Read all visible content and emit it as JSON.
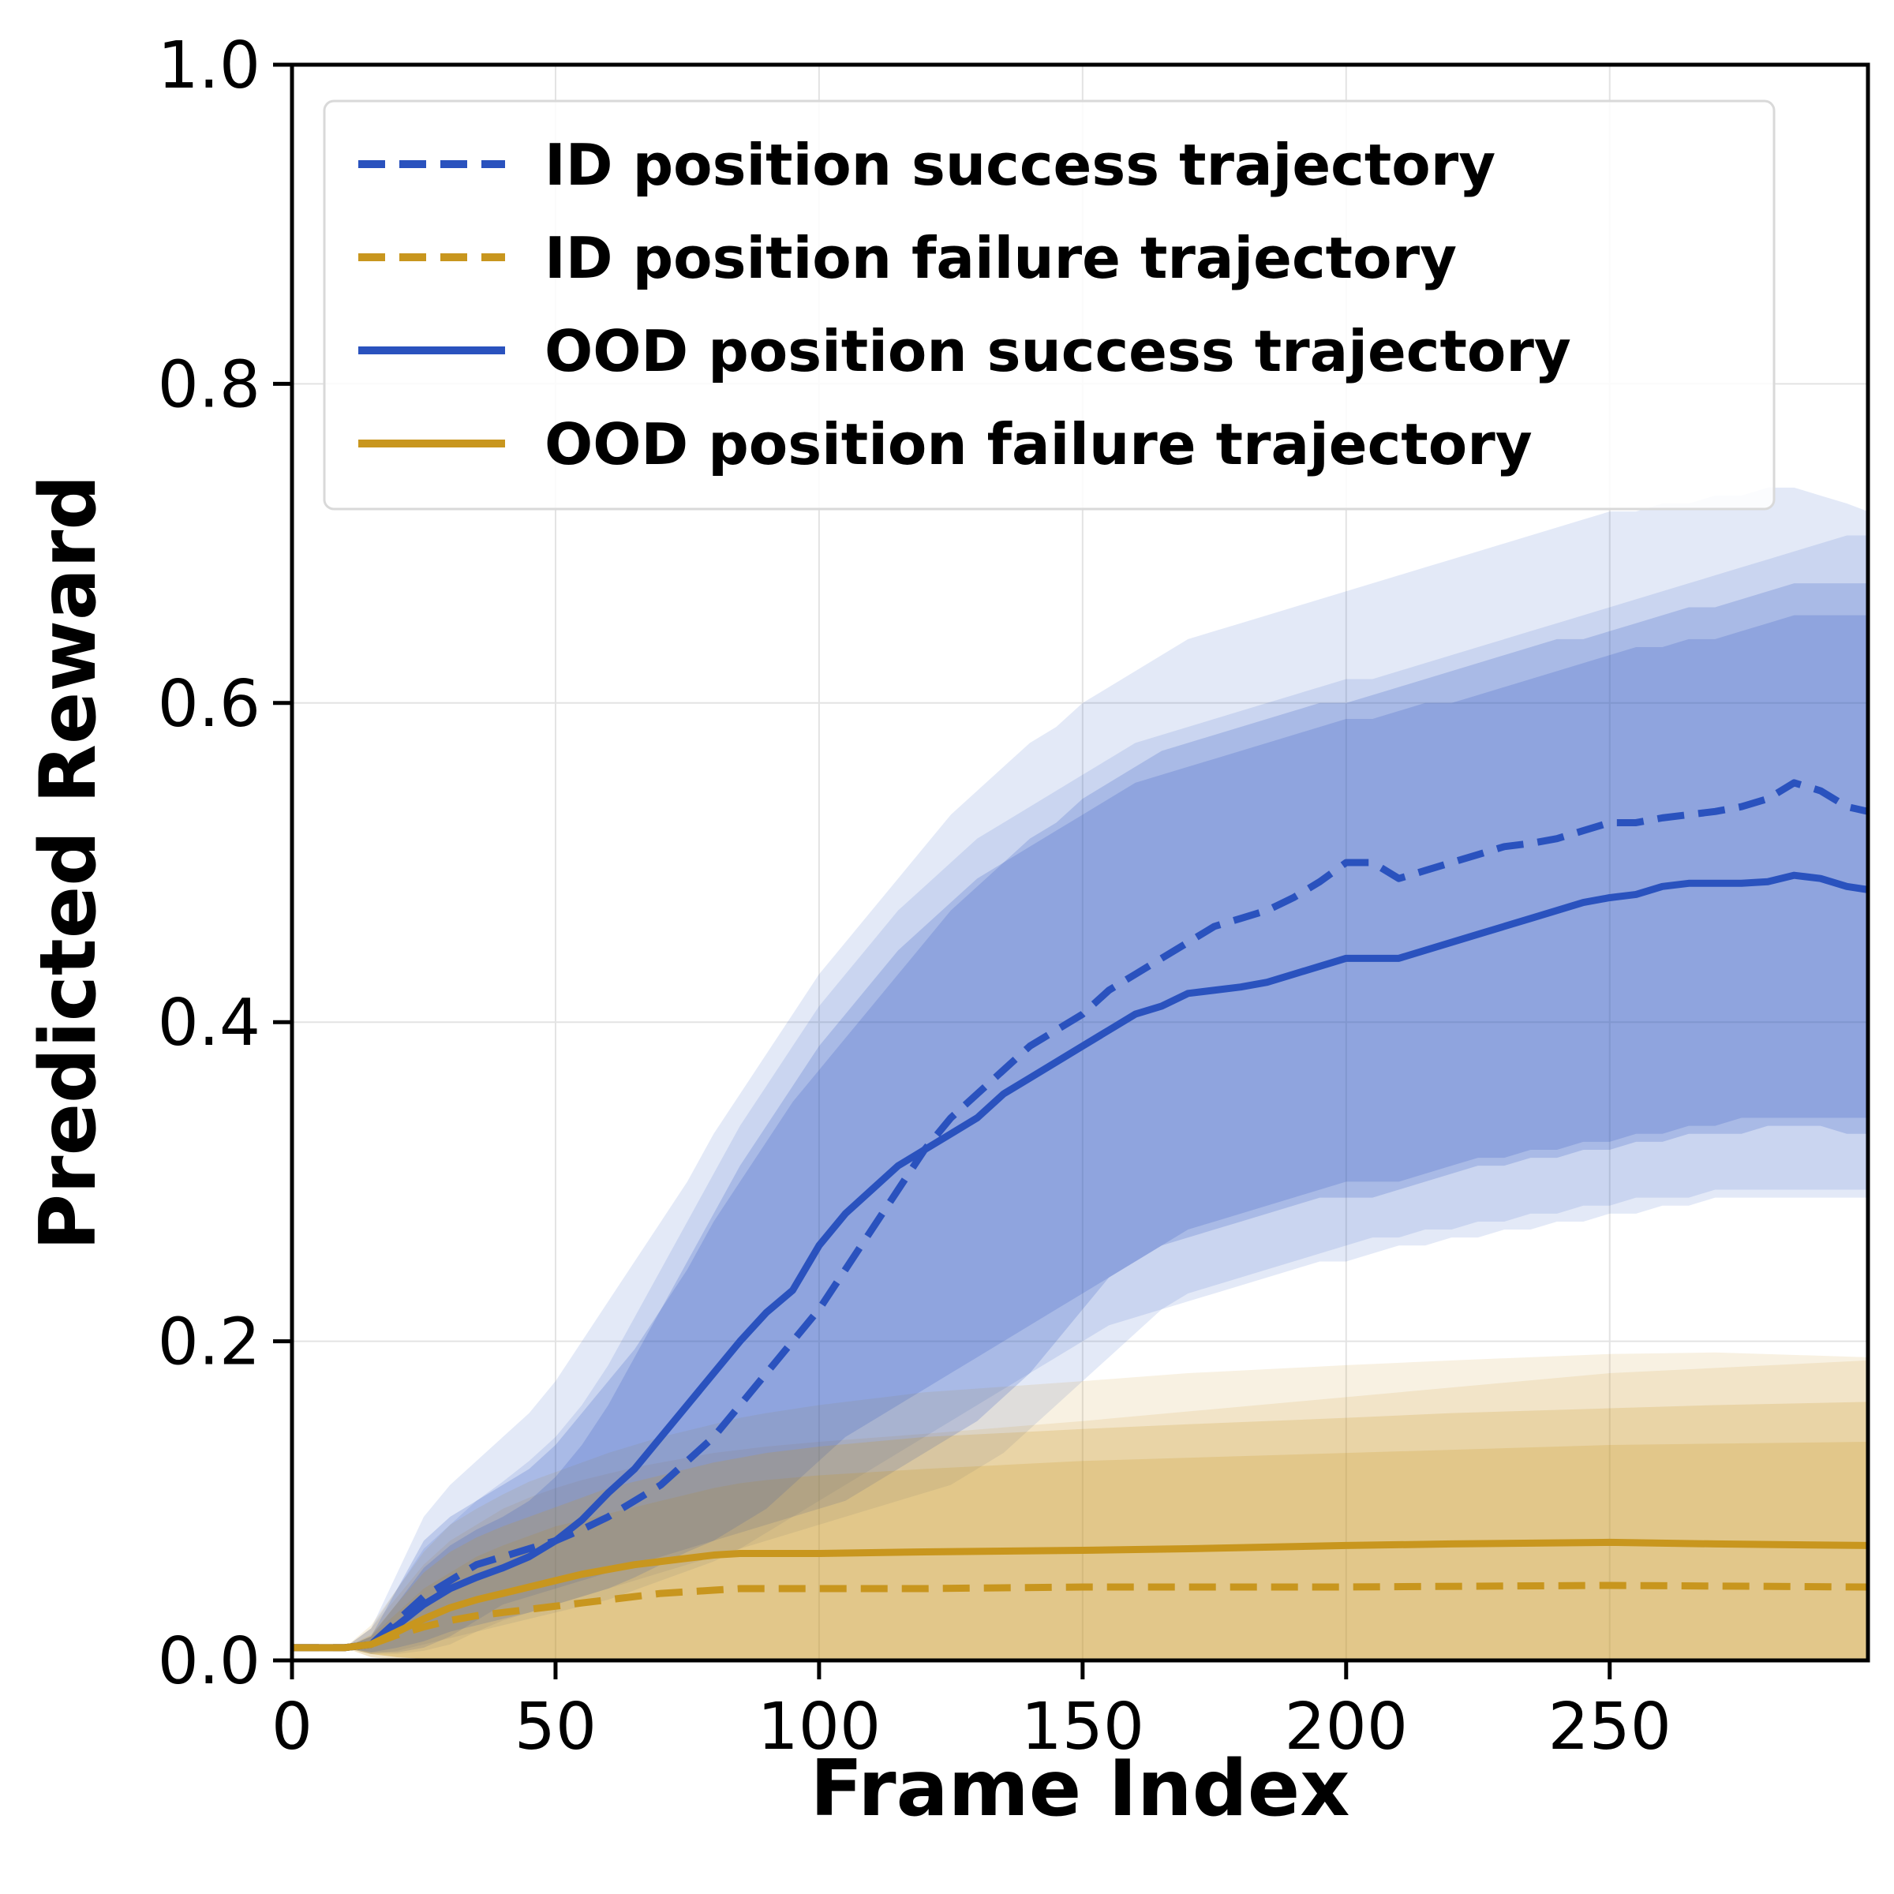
{
  "chart_data": {
    "type": "line",
    "title": "",
    "xlabel": "Frame Index",
    "ylabel": "Predicted Reward",
    "xlim": [
      0,
      299
    ],
    "ylim": [
      0,
      1.0
    ],
    "xticks": [
      0,
      50,
      100,
      150,
      200,
      250
    ],
    "xtick_labels": [
      "0",
      "50",
      "100",
      "150",
      "200",
      "250"
    ],
    "yticks": [
      0.0,
      0.2,
      0.4,
      0.6,
      0.8,
      1.0
    ],
    "ytick_labels": [
      "0.0",
      "0.2",
      "0.4",
      "0.6",
      "0.8",
      "1.0"
    ],
    "grid": true,
    "legend_position": "top-left",
    "colors": {
      "success": "#2a52be",
      "failure": "#c8961e"
    },
    "series": [
      {
        "name": "ID position success trajectory",
        "style": "dashed",
        "color": "#2a52be",
        "x": [
          0,
          10,
          15,
          20,
          25,
          30,
          35,
          40,
          45,
          50,
          55,
          60,
          65,
          70,
          75,
          80,
          85,
          90,
          95,
          100,
          105,
          110,
          115,
          120,
          125,
          130,
          135,
          140,
          145,
          150,
          155,
          160,
          165,
          170,
          175,
          180,
          185,
          190,
          195,
          200,
          205,
          210,
          215,
          220,
          225,
          230,
          235,
          240,
          245,
          250,
          255,
          260,
          265,
          270,
          275,
          280,
          285,
          290,
          295,
          299
        ],
        "y": [
          0.008,
          0.008,
          0.01,
          0.025,
          0.04,
          0.05,
          0.06,
          0.065,
          0.07,
          0.075,
          0.082,
          0.09,
          0.1,
          0.11,
          0.125,
          0.14,
          0.16,
          0.18,
          0.2,
          0.22,
          0.245,
          0.27,
          0.295,
          0.32,
          0.34,
          0.355,
          0.37,
          0.385,
          0.395,
          0.405,
          0.42,
          0.43,
          0.44,
          0.45,
          0.46,
          0.465,
          0.47,
          0.478,
          0.488,
          0.5,
          0.5,
          0.49,
          0.495,
          0.5,
          0.505,
          0.51,
          0.512,
          0.515,
          0.52,
          0.525,
          0.525,
          0.528,
          0.53,
          0.532,
          0.535,
          0.54,
          0.55,
          0.545,
          0.535,
          0.532
        ],
        "band_inner_lower": [
          0.008,
          0.008,
          0.005,
          0.005,
          0.008,
          0.015,
          0.025,
          0.035,
          0.04,
          0.045,
          0.05,
          0.055,
          0.06,
          0.065,
          0.07,
          0.075,
          0.08,
          0.085,
          0.09,
          0.095,
          0.1,
          0.11,
          0.12,
          0.13,
          0.14,
          0.15,
          0.165,
          0.18,
          0.2,
          0.22,
          0.24,
          0.25,
          0.26,
          0.27,
          0.275,
          0.28,
          0.285,
          0.29,
          0.295,
          0.3,
          0.3,
          0.3,
          0.305,
          0.31,
          0.315,
          0.315,
          0.32,
          0.32,
          0.325,
          0.325,
          0.33,
          0.33,
          0.335,
          0.335,
          0.34,
          0.34,
          0.34,
          0.34,
          0.34,
          0.34
        ],
        "band_inner_upper": [
          0.008,
          0.008,
          0.015,
          0.045,
          0.075,
          0.09,
          0.1,
          0.11,
          0.12,
          0.135,
          0.155,
          0.175,
          0.195,
          0.22,
          0.245,
          0.275,
          0.3,
          0.325,
          0.35,
          0.37,
          0.39,
          0.41,
          0.43,
          0.45,
          0.47,
          0.485,
          0.5,
          0.515,
          0.525,
          0.54,
          0.55,
          0.56,
          0.57,
          0.575,
          0.58,
          0.585,
          0.59,
          0.595,
          0.6,
          0.6,
          0.605,
          0.61,
          0.615,
          0.62,
          0.625,
          0.63,
          0.635,
          0.64,
          0.64,
          0.645,
          0.65,
          0.655,
          0.66,
          0.66,
          0.665,
          0.67,
          0.675,
          0.675,
          0.675,
          0.675
        ],
        "band_outer_lower": [
          0.008,
          0.008,
          0.004,
          0.004,
          0.006,
          0.01,
          0.018,
          0.025,
          0.03,
          0.035,
          0.04,
          0.045,
          0.05,
          0.055,
          0.06,
          0.065,
          0.07,
          0.075,
          0.08,
          0.085,
          0.09,
          0.095,
          0.1,
          0.105,
          0.11,
          0.12,
          0.13,
          0.145,
          0.16,
          0.175,
          0.19,
          0.205,
          0.22,
          0.23,
          0.235,
          0.24,
          0.245,
          0.25,
          0.255,
          0.26,
          0.265,
          0.265,
          0.27,
          0.27,
          0.275,
          0.275,
          0.28,
          0.28,
          0.285,
          0.285,
          0.29,
          0.29,
          0.29,
          0.295,
          0.295,
          0.295,
          0.295,
          0.295,
          0.295,
          0.295
        ],
        "band_outer_upper": [
          0.008,
          0.008,
          0.02,
          0.055,
          0.09,
          0.11,
          0.125,
          0.14,
          0.155,
          0.175,
          0.2,
          0.225,
          0.25,
          0.275,
          0.3,
          0.33,
          0.355,
          0.38,
          0.405,
          0.43,
          0.45,
          0.47,
          0.49,
          0.51,
          0.53,
          0.545,
          0.56,
          0.575,
          0.585,
          0.6,
          0.61,
          0.62,
          0.63,
          0.64,
          0.645,
          0.65,
          0.655,
          0.66,
          0.665,
          0.67,
          0.675,
          0.68,
          0.685,
          0.69,
          0.695,
          0.7,
          0.705,
          0.71,
          0.715,
          0.72,
          0.72,
          0.725,
          0.725,
          0.73,
          0.73,
          0.735,
          0.735,
          0.73,
          0.725,
          0.72
        ]
      },
      {
        "name": "ID position failure trajectory",
        "style": "dashed",
        "color": "#c8961e",
        "x": [
          0,
          10,
          15,
          20,
          25,
          30,
          35,
          40,
          45,
          50,
          55,
          60,
          65,
          70,
          75,
          80,
          85,
          90,
          100,
          120,
          150,
          200,
          250,
          299
        ],
        "y": [
          0.008,
          0.008,
          0.01,
          0.016,
          0.021,
          0.025,
          0.028,
          0.03,
          0.032,
          0.034,
          0.036,
          0.038,
          0.04,
          0.042,
          0.043,
          0.044,
          0.045,
          0.045,
          0.045,
          0.045,
          0.046,
          0.046,
          0.047,
          0.046
        ],
        "band_inner_lower": [
          0.008,
          0.008,
          0.004,
          0.002,
          0.001,
          0.001,
          0.001,
          0.001,
          0.001,
          0.001,
          0.001,
          0.001,
          0.001,
          0.001,
          0.001,
          0.001,
          0.001,
          0.001,
          0.001,
          0.001,
          0.001,
          0.001,
          0.001,
          0.001
        ],
        "band_inner_upper": [
          0.008,
          0.008,
          0.015,
          0.03,
          0.045,
          0.055,
          0.065,
          0.072,
          0.078,
          0.084,
          0.088,
          0.092,
          0.096,
          0.1,
          0.104,
          0.108,
          0.111,
          0.113,
          0.116,
          0.12,
          0.125,
          0.13,
          0.135,
          0.137
        ],
        "band_outer_lower": [
          0.008,
          0.008,
          0.002,
          0.001,
          0.0,
          0.0,
          0.0,
          0.0,
          0.0,
          0.0,
          0.0,
          0.0,
          0.0,
          0.0,
          0.0,
          0.0,
          0.0,
          0.0,
          0.0,
          0.0,
          0.0,
          0.0,
          0.0,
          0.0
        ],
        "band_outer_upper": [
          0.008,
          0.008,
          0.02,
          0.04,
          0.06,
          0.075,
          0.085,
          0.095,
          0.102,
          0.108,
          0.113,
          0.117,
          0.121,
          0.124,
          0.127,
          0.13,
          0.132,
          0.134,
          0.137,
          0.142,
          0.15,
          0.165,
          0.18,
          0.188
        ]
      },
      {
        "name": "OOD position success trajectory",
        "style": "solid",
        "color": "#2a52be",
        "x": [
          0,
          10,
          15,
          20,
          25,
          30,
          35,
          40,
          45,
          50,
          55,
          60,
          65,
          70,
          75,
          80,
          85,
          90,
          95,
          100,
          105,
          110,
          115,
          120,
          125,
          130,
          135,
          140,
          145,
          150,
          155,
          160,
          165,
          170,
          175,
          180,
          185,
          190,
          195,
          200,
          205,
          210,
          215,
          220,
          225,
          230,
          235,
          240,
          245,
          250,
          255,
          260,
          265,
          270,
          275,
          280,
          285,
          290,
          295,
          299
        ],
        "y": [
          0.008,
          0.008,
          0.01,
          0.022,
          0.035,
          0.045,
          0.052,
          0.058,
          0.065,
          0.075,
          0.088,
          0.105,
          0.12,
          0.14,
          0.16,
          0.18,
          0.2,
          0.218,
          0.232,
          0.26,
          0.28,
          0.295,
          0.31,
          0.32,
          0.33,
          0.34,
          0.355,
          0.365,
          0.375,
          0.385,
          0.395,
          0.405,
          0.41,
          0.418,
          0.42,
          0.422,
          0.425,
          0.43,
          0.435,
          0.44,
          0.44,
          0.44,
          0.445,
          0.45,
          0.455,
          0.46,
          0.465,
          0.47,
          0.475,
          0.478,
          0.48,
          0.485,
          0.487,
          0.487,
          0.487,
          0.488,
          0.492,
          0.49,
          0.485,
          0.483
        ],
        "band_inner_lower": [
          0.008,
          0.008,
          0.005,
          0.008,
          0.012,
          0.018,
          0.022,
          0.026,
          0.03,
          0.035,
          0.04,
          0.045,
          0.052,
          0.06,
          0.068,
          0.075,
          0.085,
          0.095,
          0.11,
          0.125,
          0.14,
          0.15,
          0.16,
          0.17,
          0.18,
          0.19,
          0.2,
          0.21,
          0.22,
          0.23,
          0.24,
          0.25,
          0.26,
          0.265,
          0.27,
          0.275,
          0.28,
          0.285,
          0.29,
          0.29,
          0.29,
          0.295,
          0.3,
          0.305,
          0.31,
          0.31,
          0.315,
          0.315,
          0.32,
          0.32,
          0.325,
          0.325,
          0.33,
          0.33,
          0.33,
          0.335,
          0.335,
          0.335,
          0.33,
          0.33
        ],
        "band_inner_upper": [
          0.008,
          0.008,
          0.015,
          0.036,
          0.058,
          0.072,
          0.082,
          0.09,
          0.1,
          0.115,
          0.135,
          0.16,
          0.19,
          0.22,
          0.25,
          0.28,
          0.31,
          0.335,
          0.36,
          0.385,
          0.405,
          0.425,
          0.445,
          0.46,
          0.475,
          0.49,
          0.5,
          0.51,
          0.52,
          0.53,
          0.54,
          0.55,
          0.555,
          0.56,
          0.565,
          0.57,
          0.575,
          0.58,
          0.585,
          0.59,
          0.59,
          0.595,
          0.6,
          0.6,
          0.605,
          0.61,
          0.615,
          0.62,
          0.625,
          0.63,
          0.635,
          0.635,
          0.64,
          0.64,
          0.645,
          0.65,
          0.655,
          0.655,
          0.655,
          0.655
        ],
        "band_outer_lower": [
          0.008,
          0.008,
          0.004,
          0.006,
          0.01,
          0.014,
          0.018,
          0.022,
          0.026,
          0.03,
          0.034,
          0.038,
          0.044,
          0.05,
          0.056,
          0.062,
          0.07,
          0.08,
          0.09,
          0.1,
          0.11,
          0.12,
          0.13,
          0.14,
          0.15,
          0.16,
          0.17,
          0.18,
          0.19,
          0.2,
          0.21,
          0.215,
          0.22,
          0.225,
          0.23,
          0.235,
          0.24,
          0.245,
          0.25,
          0.25,
          0.255,
          0.26,
          0.26,
          0.265,
          0.265,
          0.27,
          0.27,
          0.275,
          0.275,
          0.28,
          0.28,
          0.285,
          0.285,
          0.29,
          0.29,
          0.29,
          0.29,
          0.29,
          0.29,
          0.29
        ],
        "band_outer_upper": [
          0.008,
          0.008,
          0.02,
          0.045,
          0.07,
          0.085,
          0.1,
          0.112,
          0.125,
          0.14,
          0.16,
          0.185,
          0.215,
          0.245,
          0.275,
          0.305,
          0.335,
          0.36,
          0.385,
          0.41,
          0.43,
          0.45,
          0.47,
          0.485,
          0.5,
          0.515,
          0.525,
          0.535,
          0.545,
          0.555,
          0.565,
          0.575,
          0.58,
          0.585,
          0.59,
          0.595,
          0.6,
          0.605,
          0.61,
          0.615,
          0.615,
          0.62,
          0.625,
          0.63,
          0.635,
          0.64,
          0.645,
          0.65,
          0.655,
          0.66,
          0.665,
          0.67,
          0.675,
          0.68,
          0.685,
          0.69,
          0.695,
          0.7,
          0.705,
          0.705
        ]
      },
      {
        "name": "OOD position failure trajectory",
        "style": "solid",
        "color": "#c8961e",
        "x": [
          0,
          10,
          15,
          20,
          25,
          30,
          35,
          40,
          45,
          50,
          55,
          60,
          65,
          70,
          75,
          80,
          85,
          90,
          100,
          120,
          150,
          170,
          200,
          220,
          250,
          270,
          299
        ],
        "y": [
          0.008,
          0.008,
          0.01,
          0.018,
          0.026,
          0.033,
          0.038,
          0.042,
          0.046,
          0.05,
          0.054,
          0.057,
          0.06,
          0.062,
          0.064,
          0.066,
          0.067,
          0.067,
          0.067,
          0.068,
          0.069,
          0.07,
          0.072,
          0.073,
          0.074,
          0.073,
          0.072
        ],
        "band_inner_lower": [
          0.008,
          0.008,
          0.004,
          0.002,
          0.001,
          0.001,
          0.001,
          0.001,
          0.001,
          0.001,
          0.001,
          0.001,
          0.001,
          0.001,
          0.001,
          0.001,
          0.001,
          0.001,
          0.001,
          0.001,
          0.001,
          0.001,
          0.001,
          0.001,
          0.001,
          0.001,
          0.001
        ],
        "band_inner_upper": [
          0.008,
          0.008,
          0.016,
          0.036,
          0.055,
          0.068,
          0.077,
          0.084,
          0.09,
          0.096,
          0.102,
          0.108,
          0.112,
          0.116,
          0.12,
          0.124,
          0.127,
          0.13,
          0.134,
          0.14,
          0.145,
          0.148,
          0.152,
          0.155,
          0.158,
          0.16,
          0.162
        ],
        "band_outer_lower": [
          0.008,
          0.008,
          0.002,
          0.0,
          0.0,
          0.0,
          0.0,
          0.0,
          0.0,
          0.0,
          0.0,
          0.0,
          0.0,
          0.0,
          0.0,
          0.0,
          0.0,
          0.0,
          0.0,
          0.0,
          0.0,
          0.0,
          0.0,
          0.0,
          0.0,
          0.0,
          0.0
        ],
        "band_outer_upper": [
          0.008,
          0.008,
          0.022,
          0.045,
          0.068,
          0.085,
          0.095,
          0.104,
          0.112,
          0.118,
          0.124,
          0.13,
          0.135,
          0.14,
          0.144,
          0.148,
          0.152,
          0.155,
          0.16,
          0.168,
          0.175,
          0.18,
          0.185,
          0.188,
          0.192,
          0.193,
          0.19
        ]
      }
    ]
  }
}
